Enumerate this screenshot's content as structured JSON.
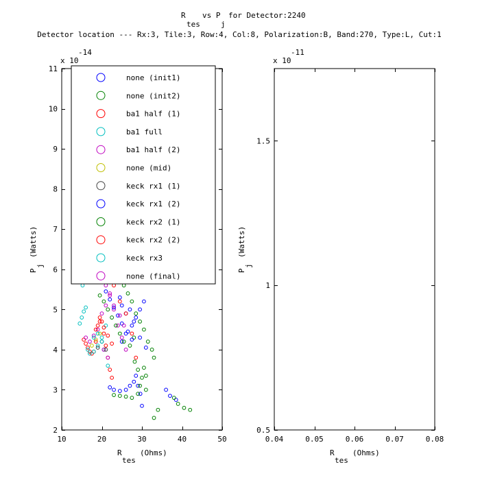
{
  "title": {
    "line1_parts": [
      "R",
      "tes",
      "vs P",
      "j",
      "for Detector:2240"
    ],
    "line2": "Detector location --- Rx:3, Tile:3, Row:4, Col:8, Polarization:B, Band:270, Type:L, Cut:1"
  },
  "chart_data": [
    {
      "type": "scatter",
      "xlabel": {
        "main": "R",
        "sub": "tes",
        "unit": "(Ohms)"
      },
      "ylabel": {
        "main": "P",
        "sub": "j",
        "unit": "(Watts)"
      },
      "xlim": [
        10,
        50
      ],
      "ylim": [
        2e-14,
        1.1e-13
      ],
      "x_ticks": [
        10,
        20,
        30,
        40,
        50
      ],
      "x_tick_labels": [
        "10",
        "20",
        "30",
        "40",
        "50"
      ],
      "y_ticks": [
        2e-14,
        3e-14,
        4e-14,
        5e-14,
        6e-14,
        7e-14,
        8e-14,
        9e-14,
        1e-13,
        1.1e-13
      ],
      "y_tick_labels": [
        "2",
        "3",
        "4",
        "5",
        "6",
        "7",
        "8",
        "9",
        "10",
        "11"
      ],
      "y_multiplier": {
        "base": "x 10",
        "exp": "-14"
      },
      "legend_location": "top-left",
      "series": [
        {
          "name": "none (init1)",
          "color": "#0000ff",
          "points": [
            [
              22.0,
              3.06e-14
            ],
            [
              23.0,
              3e-14
            ],
            [
              24.5,
              2.97e-14
            ],
            [
              26.0,
              3e-14
            ],
            [
              27.0,
              3.1e-14
            ],
            [
              28.0,
              3.2e-14
            ],
            [
              28.5,
              3.35e-14
            ],
            [
              29.0,
              3.1e-14
            ],
            [
              29.6,
              2.9e-14
            ],
            [
              30.0,
              2.6e-14
            ],
            [
              36.0,
              3e-14
            ],
            [
              37.0,
              2.85e-14
            ],
            [
              38.5,
              2.75e-14
            ],
            [
              25.0,
              4.2e-14
            ],
            [
              26.0,
              4.4e-14
            ],
            [
              27.5,
              4.6e-14
            ],
            [
              28.5,
              4.8e-14
            ],
            [
              29.5,
              5e-14
            ],
            [
              30.5,
              5.2e-14
            ],
            [
              31.0,
              4.05e-14
            ],
            [
              24.5,
              5.3e-14
            ],
            [
              25.0,
              5.1e-14
            ],
            [
              26.0,
              4.9e-14
            ],
            [
              27.0,
              5e-14
            ],
            [
              28.0,
              4.7e-14
            ],
            [
              29.5,
              4.3e-14
            ]
          ]
        },
        {
          "name": "none (init2)",
          "color": "#008000",
          "points": [
            [
              23.0,
              2.87e-14
            ],
            [
              24.5,
              2.85e-14
            ],
            [
              26.0,
              2.83e-14
            ],
            [
              27.5,
              2.8e-14
            ],
            [
              29.0,
              2.9e-14
            ],
            [
              29.5,
              3.1e-14
            ],
            [
              30.0,
              3.3e-14
            ],
            [
              30.5,
              3.55e-14
            ],
            [
              31.0,
              3e-14
            ],
            [
              33.0,
              2.3e-14
            ],
            [
              34.0,
              2.5e-14
            ],
            [
              38.0,
              2.8e-14
            ],
            [
              39.0,
              2.65e-14
            ],
            [
              40.5,
              2.55e-14
            ],
            [
              42.0,
              2.5e-14
            ],
            [
              25.5,
              5.6e-14
            ],
            [
              26.5,
              5.4e-14
            ],
            [
              27.5,
              5.2e-14
            ],
            [
              28.5,
              4.9e-14
            ],
            [
              29.5,
              4.7e-14
            ],
            [
              30.5,
              4.5e-14
            ],
            [
              31.5,
              4.2e-14
            ],
            [
              32.5,
              4e-14
            ],
            [
              33.0,
              3.8e-14
            ],
            [
              28.0,
              4.3e-14
            ],
            [
              27.0,
              4.1e-14
            ],
            [
              28.2,
              3.7e-14
            ],
            [
              29.0,
              3.5e-14
            ],
            [
              31.0,
              3.35e-14
            ]
          ]
        },
        {
          "name": "ba1 half (1)",
          "color": "#ff0000",
          "points": [
            [
              15.5,
              4.25e-14
            ],
            [
              16.0,
              4.15e-14
            ],
            [
              16.5,
              4.05e-14
            ],
            [
              17.0,
              3.95e-14
            ],
            [
              17.5,
              3.9e-14
            ],
            [
              18.0,
              3.95e-14
            ],
            [
              18.5,
              4.2e-14
            ],
            [
              19.0,
              4.6e-14
            ],
            [
              19.5,
              4.8e-14
            ],
            [
              20.0,
              4.7e-14
            ],
            [
              20.5,
              4.4e-14
            ],
            [
              21.0,
              4.1e-14
            ],
            [
              21.5,
              3.8e-14
            ],
            [
              22.0,
              3.5e-14
            ],
            [
              22.5,
              3.3e-14
            ],
            [
              23.0,
              5.6e-14
            ],
            [
              24.5,
              5.2e-14
            ],
            [
              26.0,
              4.9e-14
            ],
            [
              27.5,
              4.4e-14
            ],
            [
              28.5,
              3.8e-14
            ]
          ]
        },
        {
          "name": "ba1 full",
          "color": "#00bfbf",
          "points": [
            [
              14.5,
              4.65e-14
            ],
            [
              15.0,
              4.8e-14
            ],
            [
              15.5,
              4.95e-14
            ],
            [
              16.0,
              5.05e-14
            ],
            [
              15.2,
              5.6e-14
            ],
            [
              15.6,
              5.7e-14
            ],
            [
              16.5,
              4e-14
            ],
            [
              17.0,
              3.9e-14
            ],
            [
              18.0,
              3.95e-14
            ],
            [
              19.0,
              4.1e-14
            ],
            [
              20.0,
              4.3e-14
            ],
            [
              21.0,
              4.6e-14
            ],
            [
              20.5,
              4e-14
            ],
            [
              21.5,
              3.6e-14
            ]
          ]
        },
        {
          "name": "ba1 half (2)",
          "color": "#bf00bf",
          "points": [
            [
              16.0,
              4.3e-14
            ],
            [
              17.0,
              4.2e-14
            ],
            [
              18.0,
              4.35e-14
            ],
            [
              19.0,
              4.5e-14
            ],
            [
              20.0,
              4.9e-14
            ],
            [
              21.0,
              5.1e-14
            ],
            [
              22.0,
              5.4e-14
            ],
            [
              23.0,
              5e-14
            ],
            [
              24.0,
              4.6e-14
            ],
            [
              25.0,
              4.3e-14
            ],
            [
              26.0,
              4e-14
            ],
            [
              20.5,
              4e-14
            ],
            [
              21.5,
              3.8e-14
            ]
          ]
        },
        {
          "name": "none (mid)",
          "color": "#bfbf00",
          "points": [
            [
              17.5,
              4.1e-14
            ],
            [
              18.5,
              4.25e-14
            ],
            [
              19.5,
              4.4e-14
            ]
          ]
        },
        {
          "name": "keck rx1 (1)",
          "color": "#404040",
          "points": [
            [
              19.0,
              4.05e-14
            ],
            [
              20.0,
              4.2e-14
            ],
            [
              21.0,
              4e-14
            ]
          ]
        },
        {
          "name": "keck rx1 (2)",
          "color": "#0000ff",
          "points": [
            [
              21.0,
              5.45e-14
            ],
            [
              22.0,
              5.25e-14
            ],
            [
              23.0,
              5.05e-14
            ],
            [
              24.0,
              4.85e-14
            ],
            [
              25.0,
              4.65e-14
            ],
            [
              26.5,
              4.45e-14
            ],
            [
              27.5,
              4.25e-14
            ]
          ]
        },
        {
          "name": "keck rx2 (1)",
          "color": "#008000",
          "points": [
            [
              19.5,
              5.35e-14
            ],
            [
              20.5,
              5.2e-14
            ],
            [
              21.5,
              5e-14
            ],
            [
              22.5,
              4.8e-14
            ],
            [
              23.5,
              4.6e-14
            ],
            [
              24.5,
              4.4e-14
            ],
            [
              25.5,
              4.2e-14
            ]
          ]
        },
        {
          "name": "keck rx2 (2)",
          "color": "#ff0000",
          "points": [
            [
              18.5,
              4.5e-14
            ],
            [
              19.5,
              4.7e-14
            ],
            [
              20.5,
              4.55e-14
            ],
            [
              21.5,
              4.35e-14
            ],
            [
              22.5,
              4.15e-14
            ]
          ]
        },
        {
          "name": "keck rx3",
          "color": "#00bfbf",
          "points": [
            [
              18.0,
              4.3e-14
            ],
            [
              19.0,
              4.4e-14
            ],
            [
              20.0,
              4.2e-14
            ]
          ]
        },
        {
          "name": "none (final)",
          "color": "#bf00bf",
          "points": [
            [
              21.0,
              5.6e-14
            ],
            [
              22.0,
              5.35e-14
            ],
            [
              23.0,
              5.1e-14
            ],
            [
              24.5,
              4.85e-14
            ],
            [
              25.5,
              4.6e-14
            ]
          ]
        }
      ]
    },
    {
      "type": "scatter",
      "xlabel": {
        "main": "R",
        "sub": "tes",
        "unit": "(Ohms)"
      },
      "ylabel": {
        "main": "P",
        "sub": "j",
        "unit": "(Watts)"
      },
      "xlim": [
        0.04,
        0.08
      ],
      "ylim": [
        5e-12,
        1.75e-11
      ],
      "x_ticks": [
        0.04,
        0.05,
        0.06,
        0.07,
        0.08
      ],
      "x_tick_labels": [
        "0.04",
        "0.05",
        "0.06",
        "0.07",
        "0.08"
      ],
      "y_ticks": [
        5e-12,
        1e-11,
        1.5e-11
      ],
      "y_tick_labels": [
        "0.5",
        "1",
        "1.5"
      ],
      "y_multiplier": {
        "base": "x 10",
        "exp": "-11"
      },
      "series": []
    }
  ]
}
